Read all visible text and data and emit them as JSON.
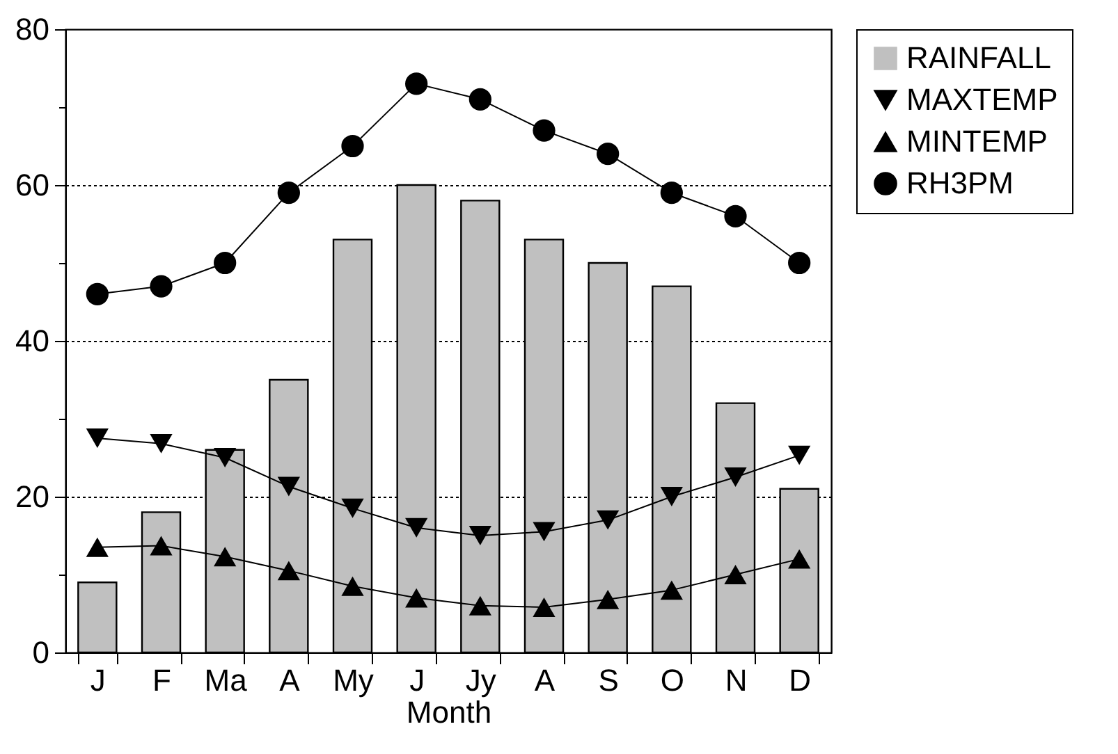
{
  "chart_data": {
    "type": "bar",
    "xlabel": "Month",
    "categories": [
      "J",
      "F",
      "Ma",
      "A",
      "My",
      "J",
      "Jy",
      "A",
      "S",
      "O",
      "N",
      "D"
    ],
    "ylim": [
      0,
      80
    ],
    "yticks": [
      0,
      {
        "value": 10,
        "label": null
      },
      20,
      {
        "value": 30,
        "label": null
      },
      40,
      {
        "value": 50,
        "label": null
      },
      60,
      {
        "value": 70,
        "label": null
      },
      80
    ],
    "grid": "y",
    "legend": "right",
    "series": [
      {
        "name": "RAINFALL",
        "color": "#c0c0c0",
        "values": [
          9,
          18,
          26,
          35,
          53,
          60,
          58,
          53,
          50,
          47,
          32,
          21
        ]
      },
      {
        "name": "MAXTEMP",
        "type": "line",
        "color": "#000000",
        "marker": "triangle-down",
        "values": [
          27.5,
          26.8,
          25,
          21.3,
          18.5,
          16,
          15,
          15.5,
          17,
          20,
          22.5,
          25.3
        ]
      },
      {
        "name": "MINTEMP",
        "type": "line",
        "color": "#000000",
        "marker": "triangle",
        "values": [
          13.5,
          13.7,
          12.3,
          10.5,
          8.5,
          7,
          6,
          5.8,
          6.8,
          8,
          10,
          12
        ]
      },
      {
        "name": "RH3PM",
        "type": "line",
        "color": "#000000",
        "marker": "circle",
        "values": [
          46,
          47,
          50,
          59,
          65,
          73,
          71,
          67,
          64,
          59,
          56,
          50
        ]
      }
    ]
  }
}
